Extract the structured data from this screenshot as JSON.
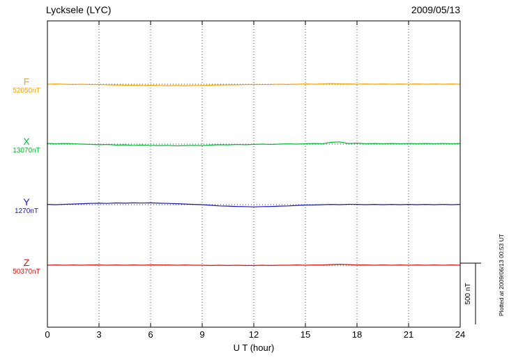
{
  "chart_data": {
    "type": "line",
    "title": "Lycksele (LYC)",
    "date": "2009/05/13",
    "xlabel": "U T (hour)",
    "x_range": [
      0,
      24
    ],
    "x_ticks": [
      0,
      3,
      6,
      9,
      12,
      15,
      18,
      21,
      24
    ],
    "x_step_hours": 0.5,
    "grid": "dotted-vertical-at-ticks-and-dotted-baselines",
    "legend_position": "left-of-each-trace",
    "scale_bar": {
      "label": "500 nT",
      "nT": 500
    },
    "plotted_note": "Plotted at 2009/06/13 00:53 UT",
    "series": [
      {
        "name": "F",
        "baseline_label": "52050nT",
        "baseline_nT": 52050,
        "color": "#F5A300",
        "values_offset_nT": [
          0,
          2,
          0,
          -2,
          0,
          -3,
          -2,
          -5,
          -6,
          -8,
          -8,
          -10,
          -9,
          -10,
          -12,
          -10,
          -12,
          -10,
          -10,
          -8,
          -6,
          -5,
          -5,
          -3,
          -2,
          -3,
          -2,
          0,
          -2,
          0,
          2,
          0,
          3,
          5,
          3,
          2,
          0,
          2,
          0,
          2,
          0,
          2,
          0,
          2,
          0,
          2,
          0,
          2,
          0
        ]
      },
      {
        "name": "X",
        "baseline_label": "13070nT",
        "baseline_nT": 13070,
        "color": "#00BB33",
        "values_offset_nT": [
          5,
          3,
          5,
          3,
          0,
          -2,
          -5,
          -3,
          -8,
          -6,
          -10,
          -8,
          -10,
          -12,
          -10,
          -14,
          -12,
          -10,
          -12,
          -8,
          -5,
          -6,
          -3,
          -5,
          -2,
          0,
          -3,
          0,
          2,
          0,
          3,
          5,
          3,
          15,
          18,
          5,
          8,
          3,
          5,
          3,
          5,
          3,
          5,
          3,
          5,
          3,
          5,
          3,
          5
        ]
      },
      {
        "name": "Y",
        "baseline_label": "1270nT",
        "baseline_nT": 1270,
        "color": "#1414CC",
        "values_offset_nT": [
          2,
          0,
          3,
          5,
          8,
          10,
          12,
          10,
          14,
          12,
          15,
          13,
          15,
          12,
          10,
          8,
          5,
          2,
          0,
          -5,
          -10,
          -12,
          -15,
          -16,
          -18,
          -16,
          -15,
          -12,
          -10,
          -6,
          -3,
          -2,
          0,
          2,
          0,
          3,
          2,
          0,
          2,
          0,
          2,
          0,
          2,
          0,
          2,
          0,
          2,
          0,
          2
        ]
      },
      {
        "name": "Z",
        "baseline_label": "50370nT",
        "baseline_nT": 50370,
        "color": "#DD1111",
        "values_offset_nT": [
          0,
          2,
          0,
          2,
          0,
          2,
          2,
          0,
          2,
          0,
          2,
          0,
          3,
          2,
          2,
          0,
          2,
          0,
          0,
          -2,
          0,
          -2,
          0,
          -2,
          -2,
          0,
          -2,
          0,
          0,
          2,
          0,
          2,
          2,
          5,
          8,
          5,
          2,
          2,
          0,
          2,
          0,
          2,
          0,
          2,
          0,
          2,
          0,
          2,
          0
        ]
      }
    ]
  }
}
